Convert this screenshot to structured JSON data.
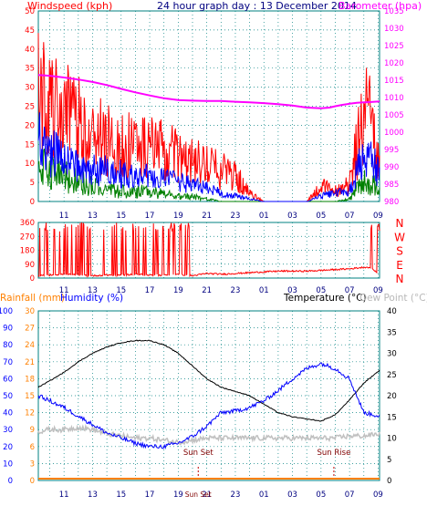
{
  "header_top": {
    "left_label": "Windspeed (kph)",
    "title": "24 hour graph day : 13 December 2014",
    "right_label": "Barometer (hpa)"
  },
  "header_bottom": {
    "rainfall_label": "Rainfall (mm)",
    "humidity_label": "Humidity (%)",
    "temperature_label": "Temperature (°C)",
    "dewpoint_label": "Dew Point (°C)"
  },
  "colors": {
    "windspeed": "#ff0000",
    "gust": "#0000ff",
    "average": "#008000",
    "barometer": "#ff00ff",
    "direction": "#ff0000",
    "temperature": "#000000",
    "humidity": "#0000ff",
    "dewpoint": "#c0c0c0",
    "rainfall": "#ff8000",
    "grid": "#008080",
    "axis_text": "#000080"
  },
  "chart_data": [
    {
      "type": "line",
      "name": "wind-barometer",
      "x_tick_labels": [
        "11",
        "13",
        "15",
        "17",
        "19",
        "21",
        "23",
        "01",
        "03",
        "05",
        "07",
        "09"
      ],
      "y_left": {
        "label": "Windspeed (kph)",
        "range": [
          0,
          50
        ],
        "ticks": [
          "0",
          "5",
          "10",
          "15",
          "20",
          "25",
          "30",
          "35",
          "40",
          "45",
          "50"
        ]
      },
      "y_right": {
        "label": "Barometer (hpa)",
        "range": [
          980,
          1035
        ],
        "ticks": [
          "980",
          "985",
          "990",
          "995",
          "1000",
          "1005",
          "1010",
          "1015",
          "1020",
          "1025",
          "1030",
          "1035"
        ]
      },
      "series": [
        {
          "name": "barometer",
          "axis": "right",
          "x": [
            9.2,
            10,
            11,
            12,
            13,
            14,
            15,
            16,
            17,
            18,
            19,
            20,
            21,
            22,
            23,
            24,
            25,
            26,
            27,
            28,
            29,
            29.6,
            30,
            30.5,
            31,
            31.5,
            32,
            32.5,
            33.1
          ],
          "values": [
            1016.5,
            1016.3,
            1015.8,
            1015.2,
            1014.5,
            1013.6,
            1012.5,
            1011.5,
            1010.6,
            1009.8,
            1009.3,
            1009.1,
            1009.0,
            1009.0,
            1008.8,
            1008.6,
            1008.4,
            1008.1,
            1007.7,
            1007.1,
            1006.9,
            1007.1,
            1007.5,
            1007.9,
            1008.2,
            1008.5,
            1008.6,
            1008.7,
            1008.9
          ]
        }
      ],
      "wind_gust_envelope": {
        "x": [
          9.2,
          10,
          11,
          12,
          13,
          14,
          15,
          16,
          17,
          18,
          19,
          20,
          21,
          22,
          23,
          24,
          25,
          26,
          27,
          28,
          29,
          30,
          31,
          32,
          32.5,
          33.1
        ],
        "values": [
          42,
          36,
          34,
          30,
          26,
          24,
          22,
          22,
          21,
          20,
          17,
          15,
          14,
          12,
          10,
          3,
          0,
          0,
          0,
          0,
          6,
          4,
          7,
          35,
          32,
          14
        ]
      },
      "wind_avg_envelope": {
        "x": [
          9.2,
          10,
          11,
          12,
          13,
          14,
          15,
          16,
          17,
          18,
          19,
          20,
          21,
          22,
          23,
          24,
          25,
          26,
          27,
          28,
          29,
          30,
          31,
          32,
          32.5,
          33.1
        ],
        "values": [
          22,
          18,
          15,
          13,
          12,
          11,
          10,
          9,
          9,
          8,
          7,
          6,
          5,
          3,
          2,
          1,
          0,
          0,
          0,
          0,
          2,
          3,
          4,
          17,
          15,
          10
        ]
      },
      "wind_low_envelope": {
        "x": [
          9.2,
          10,
          11,
          12,
          13,
          14,
          15,
          16,
          17,
          18,
          19,
          20,
          21,
          22,
          23,
          24,
          25,
          26,
          27,
          28,
          29,
          30,
          31,
          32,
          32.5,
          33.1
        ],
        "values": [
          14,
          12,
          10,
          8,
          6,
          5,
          4,
          4,
          4,
          3,
          2,
          2,
          1,
          0,
          0,
          0,
          0,
          0,
          0,
          0,
          0,
          0,
          1,
          8,
          7,
          5
        ]
      }
    },
    {
      "type": "line",
      "name": "wind-direction",
      "x_tick_labels": [
        "11",
        "13",
        "15",
        "17",
        "19",
        "21",
        "23",
        "01",
        "03",
        "05",
        "07",
        "09"
      ],
      "y_left": {
        "range": [
          0,
          360
        ],
        "ticks": [
          "0",
          "90",
          "180",
          "270",
          "360"
        ]
      },
      "y_right_labels": [
        "N",
        "W",
        "S",
        "E",
        "N"
      ],
      "series": [
        {
          "name": "direction",
          "x": [
            9.2,
            10,
            11,
            12,
            13,
            14,
            15,
            16,
            17,
            18,
            19,
            20,
            21,
            22,
            23,
            24,
            25,
            26,
            27,
            28,
            29,
            30,
            31,
            32,
            32.5,
            33.1
          ],
          "values": [
            15,
            20,
            25,
            20,
            15,
            20,
            20,
            25,
            20,
            18,
            25,
            15,
            30,
            25,
            30,
            35,
            40,
            45,
            45,
            45,
            50,
            55,
            60,
            70,
            70,
            20
          ]
        }
      ]
    },
    {
      "type": "line",
      "name": "temp-humidity",
      "x_tick_labels": [
        "11",
        "13",
        "15",
        "17",
        "19",
        "21",
        "23",
        "01",
        "03",
        "05",
        "07",
        "09"
      ],
      "y_humidity": {
        "label": "Humidity (%)",
        "range": [
          0,
          100
        ],
        "ticks": [
          "0",
          "10",
          "20",
          "30",
          "40",
          "50",
          "60",
          "70",
          "80",
          "90",
          "100"
        ]
      },
      "y_rainfall": {
        "label": "Rainfall (mm)",
        "range": [
          0,
          30
        ],
        "ticks": [
          "0",
          "3",
          "6",
          "9",
          "12",
          "15",
          "18",
          "21",
          "24",
          "27",
          "30"
        ]
      },
      "y_right": {
        "label": "Temperature (°C)",
        "range": [
          0,
          40
        ],
        "ticks": [
          "0",
          "5",
          "10",
          "15",
          "20",
          "25",
          "30",
          "35",
          "40"
        ]
      },
      "annotations": [
        {
          "text": "Sun Set",
          "x": 20.4
        },
        {
          "text": "Sun Rise",
          "x": 29.9
        }
      ],
      "series": [
        {
          "name": "temperature",
          "axis": "right",
          "x": [
            9.2,
            10,
            11,
            12,
            13,
            14,
            15,
            16,
            17,
            18,
            19,
            20,
            21,
            22,
            23,
            24,
            25,
            26,
            27,
            28,
            29,
            30,
            31,
            32,
            33.1
          ],
          "values": [
            22,
            23.5,
            25.5,
            28,
            30,
            31.5,
            32.5,
            33,
            33,
            32,
            30,
            27,
            24,
            22,
            21,
            20,
            18,
            16,
            15,
            14.5,
            14,
            15.5,
            19,
            23,
            26
          ]
        },
        {
          "name": "humidity",
          "axis": "humidity",
          "x": [
            9.2,
            10,
            11,
            12,
            13,
            14,
            15,
            16,
            17,
            18,
            19,
            20,
            21,
            22,
            23,
            24,
            25,
            26,
            27,
            28,
            29,
            30,
            31,
            32,
            33.1
          ],
          "values": [
            50,
            47,
            43,
            38,
            33,
            28,
            25,
            22,
            20,
            20,
            22,
            26,
            32,
            40,
            41,
            43,
            47,
            53,
            60,
            66,
            69,
            66,
            60,
            40,
            38
          ]
        },
        {
          "name": "dewpoint",
          "axis": "right",
          "x": [
            9.2,
            10,
            11,
            12,
            13,
            14,
            15,
            16,
            17,
            18,
            19,
            20,
            21,
            22,
            23,
            24,
            25,
            26,
            27,
            28,
            29,
            30,
            31,
            32,
            33.1
          ],
          "values": [
            11.5,
            12,
            12,
            12.5,
            12,
            11,
            10.5,
            10,
            10,
            9.5,
            9,
            9.5,
            10,
            10,
            10,
            10,
            10,
            10,
            10,
            10,
            10,
            10,
            10.5,
            10.5,
            11
          ]
        },
        {
          "name": "rainfall",
          "axis": "rainfall",
          "x": [
            9.2,
            33.1
          ],
          "values": [
            0,
            0
          ]
        }
      ]
    }
  ]
}
